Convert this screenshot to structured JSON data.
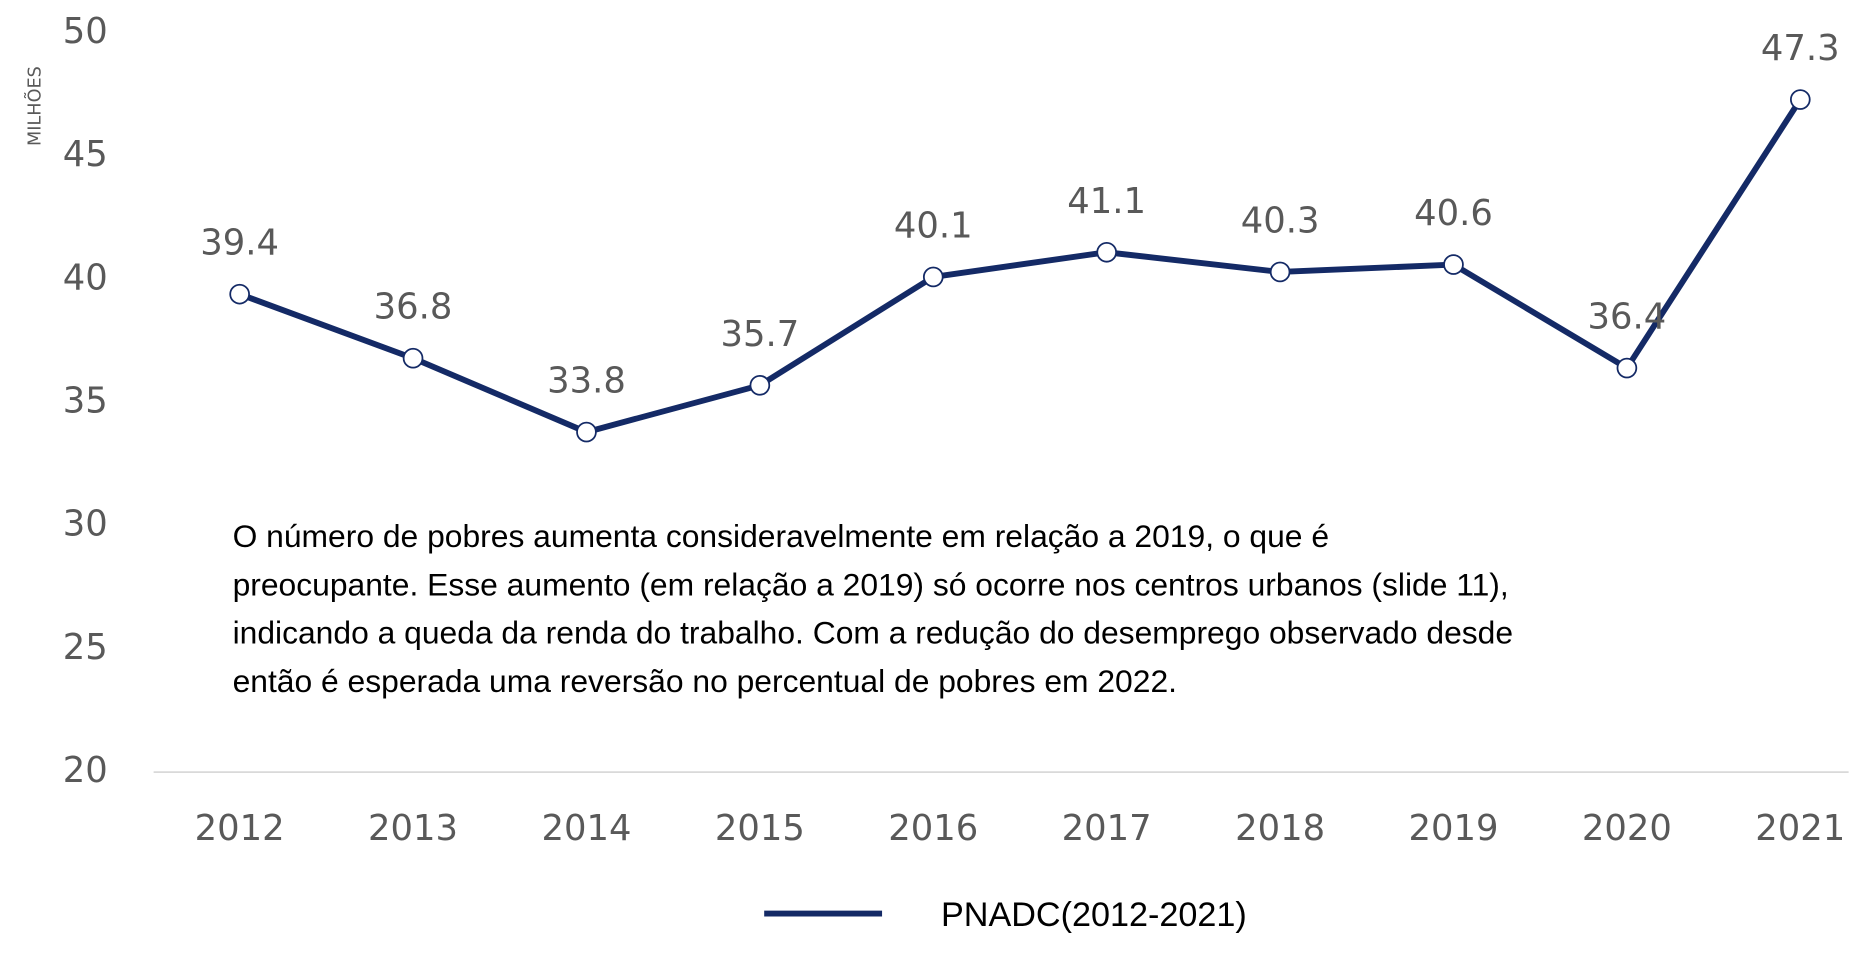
{
  "chart_data": {
    "type": "line",
    "y_label": "MILHÕES",
    "categories": [
      "2012",
      "2013",
      "2014",
      "2015",
      "2016",
      "2017",
      "2018",
      "2019",
      "2020",
      "2021"
    ],
    "series": [
      {
        "name": "PNADC(2012-2021)",
        "color": "#142a66",
        "values": [
          39.4,
          36.8,
          33.8,
          35.7,
          40.1,
          41.1,
          40.3,
          40.6,
          36.4,
          47.3
        ]
      }
    ],
    "ylim": [
      20,
      50
    ],
    "yticks": [
      20,
      25,
      30,
      35,
      40,
      45,
      50
    ],
    "grid": false,
    "legend": "bottom",
    "annotation": [
      "O número de pobres aumenta consideravelmente em relação a 2019, o que é",
      "preocupante. Esse aumento (em relação a 2019) só ocorre nos centros urbanos (slide 11),",
      "indicando a queda da renda do trabalho. Com a redução do desemprego observado desde",
      "então é esperada uma reversão no percentual de pobres em 2022."
    ]
  }
}
